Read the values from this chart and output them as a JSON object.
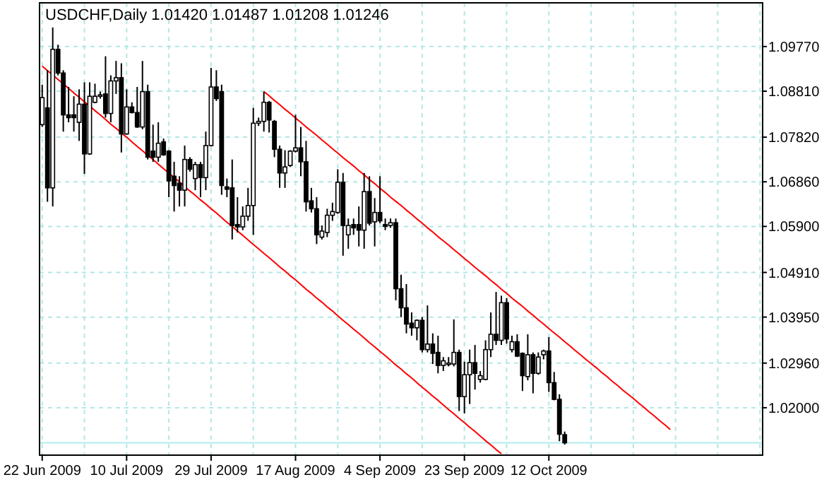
{
  "chart_data": {
    "type": "candlestick",
    "title": "USDCHF,Daily 1.01420 1.01487 1.01208 1.01246",
    "categories": [
      "22 Jun 2009",
      null,
      null,
      null,
      null,
      null,
      null,
      null,
      null,
      null,
      null,
      null,
      null,
      null,
      null,
      null,
      "10 Jul 2009",
      null,
      null,
      null,
      null,
      null,
      null,
      null,
      null,
      null,
      null,
      null,
      null,
      null,
      null,
      null,
      "29 Jul 2009",
      null,
      null,
      null,
      null,
      null,
      null,
      null,
      null,
      null,
      null,
      null,
      null,
      null,
      null,
      null,
      "17 Aug 2009",
      null,
      null,
      null,
      null,
      null,
      null,
      null,
      null,
      null,
      null,
      null,
      null,
      null,
      null,
      null,
      "4 Sep 2009",
      null,
      null,
      null,
      null,
      null,
      null,
      null,
      null,
      null,
      null,
      null,
      null,
      null,
      null,
      null,
      "23 Sep 2009",
      null,
      null,
      null,
      null,
      null,
      null,
      null,
      null,
      null,
      null,
      null,
      null,
      null,
      null,
      null,
      "12 Oct 2009",
      null,
      null,
      null,
      null,
      null,
      null,
      null,
      null,
      null,
      null,
      null,
      null,
      null,
      null,
      null,
      null,
      null,
      null,
      null,
      null,
      null,
      null,
      null,
      null,
      null,
      null,
      null,
      null,
      null,
      null,
      null,
      null,
      null,
      null,
      null,
      null,
      null,
      null,
      null,
      null
    ],
    "ohlc": [
      [
        1.0809,
        1.0895,
        1.0804,
        1.0867
      ],
      [
        1.0845,
        1.0926,
        1.0643,
        1.0673
      ],
      [
        1.0673,
        1.1018,
        1.0633,
        1.0971
      ],
      [
        1.0971,
        1.0981,
        1.0915,
        1.092
      ],
      [
        1.092,
        1.0926,
        1.0794,
        1.083
      ],
      [
        1.083,
        1.089,
        1.0814,
        1.0824
      ],
      [
        1.083,
        1.087,
        1.0794,
        1.0824
      ],
      [
        1.0814,
        1.0885,
        1.0774,
        1.0853
      ],
      [
        1.0853,
        1.09,
        1.0703,
        1.0746
      ],
      [
        1.0746,
        1.09,
        1.0744,
        1.087
      ],
      [
        1.0857,
        1.0897,
        1.0855,
        1.087
      ],
      [
        1.0873,
        1.088,
        1.0865,
        1.0873
      ],
      [
        1.0875,
        1.0956,
        1.0824,
        1.0833
      ],
      [
        1.0833,
        1.0915,
        1.0814,
        1.0903
      ],
      [
        1.0903,
        1.0946,
        1.0875,
        1.091
      ],
      [
        1.091,
        1.0941,
        1.0749,
        1.0789
      ],
      [
        1.0789,
        1.0885,
        1.0787,
        1.0847
      ],
      [
        1.0847,
        1.0857,
        1.0833,
        1.0835
      ],
      [
        1.0835,
        1.089,
        1.0802,
        1.0804
      ],
      [
        1.0804,
        1.0946,
        1.0799,
        1.088
      ],
      [
        1.088,
        1.0895,
        1.0734,
        1.0739
      ],
      [
        1.0752,
        1.0809,
        1.0729,
        1.0739
      ],
      [
        1.0739,
        1.0814,
        1.0729,
        1.0769
      ],
      [
        1.0772,
        1.0779,
        1.0742,
        1.0744
      ],
      [
        1.0752,
        1.0754,
        1.0653,
        1.0688
      ],
      [
        1.0698,
        1.0729,
        1.0622,
        1.0678
      ],
      [
        1.0683,
        1.0698,
        1.0633,
        1.0668
      ],
      [
        1.0668,
        1.0764,
        1.0633,
        1.0734
      ],
      [
        1.0734,
        1.0739,
        1.0708,
        1.0713
      ],
      [
        1.0693,
        1.0729,
        1.0668,
        1.0723
      ],
      [
        1.0723,
        1.0729,
        1.0653,
        1.0695
      ],
      [
        1.0695,
        1.0794,
        1.0668,
        1.0764
      ],
      [
        1.0764,
        1.0931,
        1.0762,
        1.089
      ],
      [
        1.089,
        1.0926,
        1.086,
        1.0865
      ],
      [
        1.088,
        1.0895,
        1.0658,
        1.0678
      ],
      [
        1.0675,
        1.0693,
        1.0653,
        1.067
      ],
      [
        1.0673,
        1.0734,
        1.0562,
        1.0592
      ],
      [
        1.0594,
        1.0653,
        1.0577,
        1.0589
      ],
      [
        1.0589,
        1.0633,
        1.0582,
        1.0612
      ],
      [
        1.0612,
        1.0673,
        1.0602,
        1.0635
      ],
      [
        1.0635,
        1.0845,
        1.0572,
        1.0812
      ],
      [
        1.0812,
        1.0824,
        1.0806,
        1.0816
      ],
      [
        1.0816,
        1.088,
        1.0794,
        1.0857
      ],
      [
        1.0857,
        1.086,
        1.0792,
        1.0819
      ],
      [
        1.0816,
        1.0819,
        1.0739,
        1.0756
      ],
      [
        1.0756,
        1.0764,
        1.0673,
        1.0705
      ],
      [
        1.0705,
        1.0754,
        1.0673,
        1.0718
      ],
      [
        1.0721,
        1.0754,
        1.0718,
        1.0752
      ],
      [
        1.0752,
        1.083,
        1.0749,
        1.0759
      ],
      [
        1.0759,
        1.0804,
        1.0698,
        1.0729
      ],
      [
        1.0729,
        1.0774,
        1.0622,
        1.0643
      ],
      [
        1.0645,
        1.0673,
        1.062,
        1.0628
      ],
      [
        1.0628,
        1.0653,
        1.0552,
        1.0572
      ],
      [
        1.0567,
        1.0592,
        1.0562,
        1.058
      ],
      [
        1.0577,
        1.0628,
        1.0567,
        1.0614
      ],
      [
        1.0614,
        1.0641,
        1.0602,
        1.0622
      ],
      [
        1.062,
        1.0713,
        1.0617,
        1.0685
      ],
      [
        1.0685,
        1.0705,
        1.0527,
        1.0592
      ],
      [
        1.0572,
        1.0607,
        1.0542,
        1.0592
      ],
      [
        1.0594,
        1.0607,
        1.0572,
        1.0587
      ],
      [
        1.0594,
        1.0633,
        1.0547,
        1.0582
      ],
      [
        1.0582,
        1.0705,
        1.0542,
        1.0665
      ],
      [
        1.0665,
        1.0698,
        1.0592,
        1.0597
      ],
      [
        1.06,
        1.0651,
        1.0547,
        1.062
      ],
      [
        1.062,
        1.0698,
        1.0597,
        1.0602
      ],
      [
        1.0594,
        1.0607,
        1.0582,
        1.059
      ],
      [
        1.0592,
        1.0607,
        1.0587,
        1.0598
      ],
      [
        1.0598,
        1.0607,
        1.0431,
        1.0456
      ],
      [
        1.0456,
        1.0486,
        1.0395,
        1.0415
      ],
      [
        1.0415,
        1.0466,
        1.036,
        1.038
      ],
      [
        1.0382,
        1.0405,
        1.0355,
        1.0372
      ],
      [
        1.0372,
        1.039,
        1.0345,
        1.0388
      ],
      [
        1.0388,
        1.0395,
        1.0319,
        1.0325
      ],
      [
        1.0325,
        1.042,
        1.0319,
        1.0337
      ],
      [
        1.0337,
        1.036,
        1.0294,
        1.0317
      ],
      [
        1.0319,
        1.0355,
        1.0274,
        1.0291
      ],
      [
        1.0291,
        1.0309,
        1.0279,
        1.0301
      ],
      [
        1.0296,
        1.0309,
        1.0289,
        1.0296
      ],
      [
        1.0294,
        1.039,
        1.0289,
        1.0319
      ],
      [
        1.0319,
        1.0325,
        1.0193,
        1.0224
      ],
      [
        1.0224,
        1.0299,
        1.0188,
        1.0271
      ],
      [
        1.0271,
        1.0325,
        1.0208,
        1.0297
      ],
      [
        1.0297,
        1.0335,
        1.0239,
        1.0274
      ],
      [
        1.0261,
        1.0279,
        1.0254,
        1.0269
      ],
      [
        1.0261,
        1.0345,
        1.0259,
        1.0325
      ],
      [
        1.0325,
        1.0405,
        1.0309,
        1.0358
      ],
      [
        1.0358,
        1.0449,
        1.0335,
        1.0345
      ],
      [
        1.0345,
        1.0441,
        1.0335,
        1.0426
      ],
      [
        1.0426,
        1.0436,
        1.0338,
        1.0348
      ],
      [
        1.0325,
        1.0355,
        1.0319,
        1.0342
      ],
      [
        1.0342,
        1.0358,
        1.0309,
        1.0311
      ],
      [
        1.0317,
        1.0319,
        1.0236,
        1.0269
      ],
      [
        1.0267,
        1.0358,
        1.0259,
        1.0314
      ],
      [
        1.0314,
        1.0319,
        1.0231,
        1.0274
      ],
      [
        1.0274,
        1.0319,
        1.0271,
        1.0309
      ],
      [
        1.0314,
        1.0325,
        1.0304,
        1.0322
      ],
      [
        1.0322,
        1.0352,
        1.0234,
        1.0254
      ],
      [
        1.0254,
        1.0277,
        1.0216,
        1.0218
      ],
      [
        1.0218,
        1.0229,
        1.0128,
        1.0143
      ],
      [
        1.0142,
        1.01487,
        1.01208,
        1.01246
      ],
      null,
      null,
      null,
      null,
      null,
      null,
      null,
      null,
      null,
      null,
      null,
      null,
      null,
      null,
      null,
      null,
      null,
      null,
      null,
      null,
      null,
      null,
      null,
      null,
      null,
      null,
      null,
      null,
      null,
      null,
      null,
      null,
      null,
      null,
      null,
      null,
      null
    ],
    "series": [
      {
        "type": "line",
        "color": "#ff0000",
        "values": [
          null,
          null,
          null,
          null,
          null,
          null,
          null,
          null,
          null,
          null,
          null,
          null,
          null,
          null,
          null,
          null,
          null,
          null,
          null,
          null,
          null,
          null,
          null,
          null,
          null,
          null,
          null,
          null,
          null,
          null,
          null,
          null,
          null,
          null,
          null,
          null,
          null,
          null,
          null,
          null,
          null,
          null,
          1.088,
          1.0871,
          1.0861,
          1.0852,
          1.0842,
          1.0833,
          1.0823,
          1.0814,
          1.0804,
          1.0795,
          1.0786,
          1.0776,
          1.0767,
          1.0757,
          1.0748,
          1.0738,
          1.0729,
          1.072,
          1.071,
          1.0701,
          1.0691,
          1.0682,
          1.0672,
          1.0663,
          1.0653,
          1.0644,
          1.0635,
          1.0625,
          1.0616,
          1.0606,
          1.0597,
          1.0587,
          1.0578,
          1.0568,
          1.0559,
          1.055,
          1.054,
          1.0531,
          1.0521,
          1.0512,
          1.0502,
          1.0493,
          1.0484,
          1.0474,
          1.0465,
          1.0455,
          1.0446,
          1.0436,
          1.0427,
          1.0418,
          1.0408,
          1.0399,
          1.0389,
          1.038,
          1.037,
          1.0361,
          1.0352,
          1.0342,
          1.0333,
          1.0323,
          1.0314,
          1.0304,
          1.0295,
          1.0286,
          1.0276,
          1.0267,
          1.0257,
          1.0248,
          1.0238,
          1.0229,
          1.022,
          1.021,
          1.0201,
          1.0191,
          1.0182,
          1.0172,
          1.0163,
          1.0153,
          null,
          null,
          null,
          null,
          null,
          null,
          null,
          null,
          null,
          null,
          null,
          null,
          null,
          null,
          null,
          null,
          null
        ]
      },
      {
        "type": "line",
        "color": "#ff0000",
        "values": [
          1.0935,
          1.0925,
          1.0916,
          1.0906,
          1.0897,
          1.0887,
          1.0877,
          1.0868,
          1.0858,
          1.0849,
          1.0839,
          1.083,
          1.082,
          1.081,
          1.0801,
          1.0791,
          1.0782,
          1.0772,
          1.0762,
          1.0753,
          1.0743,
          1.0734,
          1.0724,
          1.0714,
          1.0705,
          1.0695,
          1.0686,
          1.0676,
          1.0666,
          1.0657,
          1.0647,
          1.0638,
          1.0628,
          1.0619,
          1.0609,
          1.0599,
          1.059,
          1.058,
          1.0571,
          1.0561,
          1.0551,
          1.0542,
          1.0532,
          1.0523,
          1.0513,
          1.0503,
          1.0494,
          1.0484,
          1.0475,
          1.0465,
          1.0455,
          1.0446,
          1.0436,
          1.0427,
          1.0417,
          1.0408,
          1.0398,
          1.0388,
          1.0379,
          1.0369,
          1.036,
          1.035,
          1.034,
          1.0331,
          1.0321,
          1.0312,
          1.0302,
          1.0292,
          1.0283,
          1.0273,
          1.0264,
          1.0254,
          1.0244,
          1.0235,
          1.0225,
          1.0216,
          1.0206,
          1.0196,
          1.0187,
          1.0177,
          1.0168,
          1.0158,
          1.0149,
          1.0139,
          1.0129,
          1.012,
          1.011,
          1.0101,
          null,
          null,
          null,
          null,
          null,
          null,
          null,
          null,
          null,
          null,
          null,
          null,
          null,
          null,
          null,
          null,
          null,
          null,
          null,
          null,
          null,
          null,
          null,
          null,
          null,
          null,
          null,
          null,
          null,
          null,
          null,
          null,
          null,
          null,
          null,
          null,
          null,
          null,
          null,
          null,
          null,
          null,
          null,
          null,
          null,
          null,
          null,
          null,
          null
        ]
      }
    ],
    "ylim": [
      1.0098,
      1.1071
    ],
    "yticks": [
      {
        "value": 1.0977,
        "label": "1.09770"
      },
      {
        "value": 1.0881,
        "label": "1.08810"
      },
      {
        "value": 1.0782,
        "label": "1.07820"
      },
      {
        "value": 1.0686,
        "label": "1.06860"
      },
      {
        "value": 1.059,
        "label": "1.05900"
      },
      {
        "value": 1.0491,
        "label": "1.04910"
      },
      {
        "value": 1.0395,
        "label": "1.03950"
      },
      {
        "value": 1.0296,
        "label": "1.02960"
      },
      {
        "value": 1.02,
        "label": "1.02000"
      }
    ],
    "ref_lines": [
      {
        "axis": "y",
        "value": 1.01246,
        "color": "#b4ecec"
      }
    ],
    "grid": true
  }
}
